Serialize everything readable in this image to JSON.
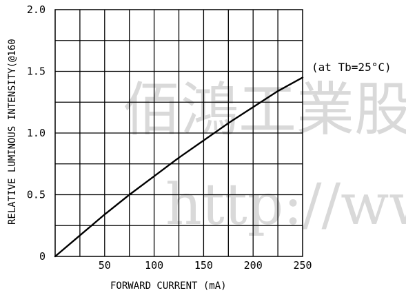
{
  "chart_data": {
    "type": "line",
    "title": "",
    "xlabel": "FORWARD CURRENT (mA)",
    "ylabel": "RELATIVE LUMINOUS INTENSITY(@160",
    "annotation": "(at Tb=25°C)",
    "xlim": [
      0,
      250
    ],
    "ylim": [
      0,
      2.0
    ],
    "x_ticks": [
      50,
      100,
      150,
      200,
      250
    ],
    "x_tick_labels": [
      "50",
      "100",
      "150",
      "200",
      "250"
    ],
    "y_ticks": [
      0,
      0.5,
      1.0,
      1.5,
      2.0
    ],
    "y_tick_labels": [
      "0",
      "0.5",
      "1.0",
      "1.5",
      "2.0"
    ],
    "grid": true,
    "x_grid_step": 25,
    "y_grid_step": 0.25,
    "series": [
      {
        "x": [
          0,
          25,
          50,
          75,
          100,
          125,
          150,
          175,
          200,
          225,
          250
        ],
        "y": [
          0,
          0.17,
          0.34,
          0.5,
          0.65,
          0.8,
          0.94,
          1.08,
          1.21,
          1.34,
          1.45
        ]
      }
    ]
  },
  "watermark": {
    "line1": "佰鴻工業股",
    "line2": "http://ww"
  },
  "colors": {
    "line": "#000000",
    "watermark": "#d9d9d9",
    "background": "#ffffff"
  }
}
